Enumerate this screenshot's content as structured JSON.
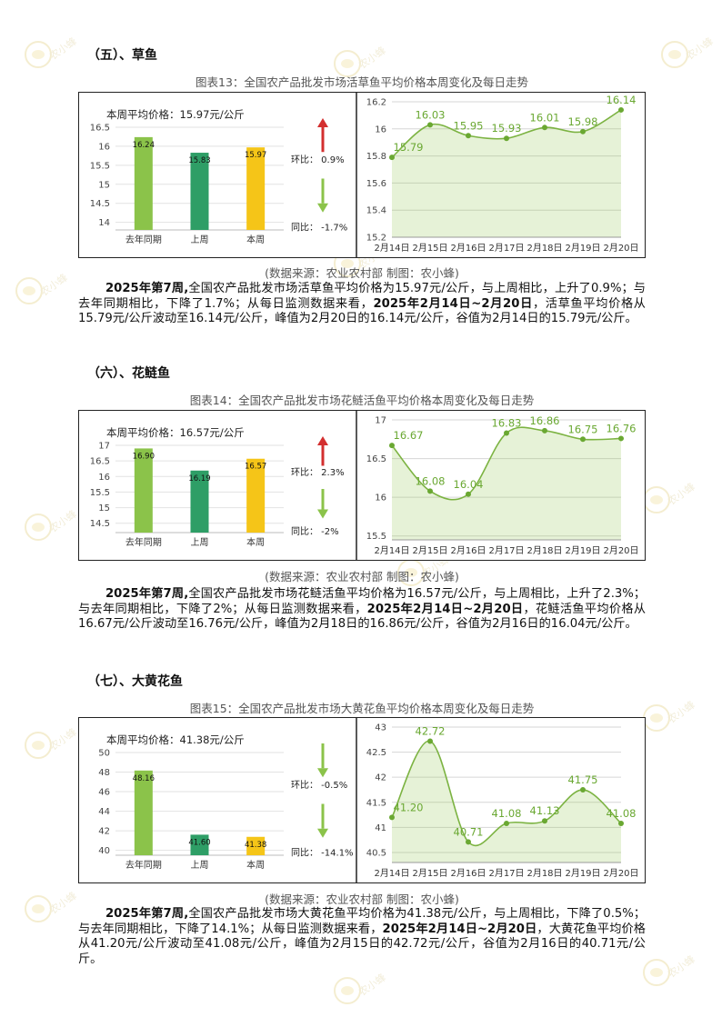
{
  "watermark": {
    "text": "农小蜂",
    "sub": "BEEDATA"
  },
  "source_text": "(数据来源：农业农村部    制图：农小蜂)",
  "sections": [
    {
      "title": "（五）、草鱼",
      "caption": "图表13：全国农产品批发市场活草鱼平均价格本周变化及每日走势",
      "weekly_avg_label": "本周平均价格：15.97元/公斤",
      "bar": {
        "categories": [
          "去年同期",
          "上周",
          "本周"
        ],
        "values": [
          16.24,
          15.83,
          15.97
        ],
        "value_labels": [
          "16.24",
          "15.83",
          "15.97"
        ],
        "colors": [
          "#8bc34a",
          "#2e9e66",
          "#f5c518"
        ],
        "ylim": [
          13.8,
          16.5
        ],
        "yticks": [
          "14",
          "14.5",
          "15",
          "15.5",
          "16",
          "16.5"
        ],
        "ytick_vals": [
          14,
          14.5,
          15,
          15.5,
          16,
          16.5
        ]
      },
      "mom": {
        "label": "环比：",
        "value": "0.9%",
        "direction": "up"
      },
      "yoy": {
        "label": "同比：",
        "value": "-1.7%",
        "direction": "down"
      },
      "line": {
        "x": [
          "2月14日",
          "2月15日",
          "2月16日",
          "2月17日",
          "2月18日",
          "2月19日",
          "2月20日"
        ],
        "values": [
          15.79,
          16.03,
          15.95,
          15.93,
          16.01,
          15.98,
          16.14
        ],
        "labels": [
          "15.79",
          "16.03",
          "15.95",
          "15.93",
          "16.01",
          "15.98",
          "16.14"
        ],
        "ylim": [
          15.2,
          16.2
        ],
        "ytick_vals": [
          15.2,
          15.4,
          15.6,
          15.8,
          16,
          16.2
        ],
        "yticks": [
          "15.2",
          "15.4",
          "15.6",
          "15.8",
          "16",
          "16.2"
        ]
      },
      "paragraph": {
        "p1_bold": "2025年第7周,",
        "p1": "全国农产品批发市场活草鱼平均价格为15.97元/公斤，与上周相比，上升了0.9%；与去年同期相比，下降了1.7%；从每日监测数据来看，",
        "p2_bold": "2025年2月14日~2月20日",
        "p2": "，活草鱼平均价格从15.79元/公斤波动至16.14元/公斤，峰值为2月20日的16.14元/公斤，谷值为2月14日的15.79元/公斤。"
      }
    },
    {
      "title": "（六）、花鲢鱼",
      "caption": "图表14：全国农产品批发市场花鲢活鱼平均价格本周变化及每日走势",
      "weekly_avg_label": "本周平均价格：16.57元/公斤",
      "bar": {
        "categories": [
          "去年同期",
          "上周",
          "本周"
        ],
        "values": [
          16.9,
          16.19,
          16.57
        ],
        "value_labels": [
          "16.90",
          "16.19",
          "16.57"
        ],
        "colors": [
          "#8bc34a",
          "#2e9e66",
          "#f5c518"
        ],
        "ylim": [
          14.2,
          17
        ],
        "yticks": [
          "14.5",
          "15",
          "15.5",
          "16",
          "16.5",
          "17"
        ],
        "ytick_vals": [
          14.5,
          15,
          15.5,
          16,
          16.5,
          17
        ]
      },
      "mom": {
        "label": "环比：",
        "value": "2.3%",
        "direction": "up"
      },
      "yoy": {
        "label": "同比：",
        "value": "-2%",
        "direction": "down"
      },
      "line": {
        "x": [
          "2月14日",
          "2月15日",
          "2月16日",
          "2月17日",
          "2月18日",
          "2月19日",
          "2月20日"
        ],
        "values": [
          16.67,
          16.08,
          16.04,
          16.83,
          16.86,
          16.75,
          16.76
        ],
        "labels": [
          "16.67",
          "16.08",
          "16.04",
          "16.83",
          "16.86",
          "16.75",
          "16.76"
        ],
        "ylim": [
          15.45,
          17
        ],
        "ytick_vals": [
          15.5,
          16,
          16.5,
          17
        ],
        "yticks": [
          "15.5",
          "16",
          "16.5",
          "17"
        ]
      },
      "paragraph": {
        "p1_bold": "2025年第7周,",
        "p1": "全国农产品批发市场花鲢活鱼平均价格为16.57元/公斤，与上周相比，上升了2.3%；与去年同期相比，下降了2%；从每日监测数据来看，",
        "p2_bold": "2025年2月14日~2月20日",
        "p2": "，花鲢活鱼平均价格从16.67元/公斤波动至16.76元/公斤，峰值为2月18日的16.86元/公斤，谷值为2月16日的16.04元/公斤。"
      }
    },
    {
      "title": "（七）、大黄花鱼",
      "caption": "图表15：全国农产品批发市场大黄花鱼平均价格本周变化及每日走势",
      "weekly_avg_label": "本周平均价格：41.38元/公斤",
      "bar": {
        "categories": [
          "去年同期",
          "上周",
          "本周"
        ],
        "values": [
          48.16,
          41.6,
          41.38
        ],
        "value_labels": [
          "48.16",
          "41.60",
          "41.38"
        ],
        "colors": [
          "#8bc34a",
          "#2e9e66",
          "#f5c518"
        ],
        "ylim": [
          39.5,
          50
        ],
        "yticks": [
          "40",
          "42",
          "44",
          "46",
          "48",
          "50"
        ],
        "ytick_vals": [
          40,
          42,
          44,
          46,
          48,
          50
        ]
      },
      "mom": {
        "label": "环比：",
        "value": "-0.5%",
        "direction": "down"
      },
      "yoy": {
        "label": "同比：",
        "value": "-14.1%",
        "direction": "down"
      },
      "line": {
        "x": [
          "2月14日",
          "2月15日",
          "2月16日",
          "2月17日",
          "2月18日",
          "2月19日",
          "2月20日"
        ],
        "values": [
          41.2,
          42.72,
          40.71,
          41.08,
          41.13,
          41.75,
          41.08
        ],
        "labels": [
          "41.20",
          "42.72",
          "40.71",
          "41.08",
          "41.13",
          "41.75",
          "41.08"
        ],
        "ylim": [
          40.3,
          43
        ],
        "ytick_vals": [
          40.5,
          41,
          41.5,
          42,
          42.5,
          43
        ],
        "yticks": [
          "40.5",
          "41",
          "41.5",
          "42",
          "42.5",
          "43"
        ]
      },
      "paragraph": {
        "p1_bold": "2025年第7周,",
        "p1": "全国农产品批发市场大黄花鱼平均价格为41.38元/公斤，与上周相比，下降了0.5%；与去年同期相比，下降了14.1%；从每日监测数据来看，",
        "p2_bold": "2025年2月14日~2月20日",
        "p2": "，大黄花鱼平均价格从41.20元/公斤波动至41.08元/公斤，峰值为2月15日的42.72元/公斤，谷值为2月16日的40.71元/公斤。"
      }
    }
  ],
  "chart_data": [
    {
      "type": "bar",
      "title": "",
      "categories": [
        "去年同期",
        "上周",
        "本周"
      ],
      "values": [
        16.24,
        15.83,
        15.97
      ],
      "ylim": [
        13.8,
        16.5
      ]
    },
    {
      "type": "line",
      "title": "",
      "x": [
        "2月14日",
        "2月15日",
        "2月16日",
        "2月17日",
        "2月18日",
        "2月19日",
        "2月20日"
      ],
      "values": [
        15.79,
        16.03,
        15.95,
        15.93,
        16.01,
        15.98,
        16.14
      ],
      "ylim": [
        15.2,
        16.2
      ]
    },
    {
      "type": "bar",
      "title": "",
      "categories": [
        "去年同期",
        "上周",
        "本周"
      ],
      "values": [
        16.9,
        16.19,
        16.57
      ],
      "ylim": [
        14.2,
        17
      ]
    },
    {
      "type": "line",
      "title": "",
      "x": [
        "2月14日",
        "2月15日",
        "2月16日",
        "2月17日",
        "2月18日",
        "2月19日",
        "2月20日"
      ],
      "values": [
        16.67,
        16.08,
        16.04,
        16.83,
        16.86,
        16.75,
        16.76
      ],
      "ylim": [
        15.45,
        17
      ]
    },
    {
      "type": "bar",
      "title": "",
      "categories": [
        "去年同期",
        "上周",
        "本周"
      ],
      "values": [
        48.16,
        41.6,
        41.38
      ],
      "ylim": [
        39.5,
        50
      ]
    },
    {
      "type": "line",
      "title": "",
      "x": [
        "2月14日",
        "2月15日",
        "2月16日",
        "2月17日",
        "2月18日",
        "2月19日",
        "2月20日"
      ],
      "values": [
        41.2,
        42.72,
        40.71,
        41.08,
        41.13,
        41.75,
        41.08
      ],
      "ylim": [
        40.3,
        43
      ]
    }
  ]
}
